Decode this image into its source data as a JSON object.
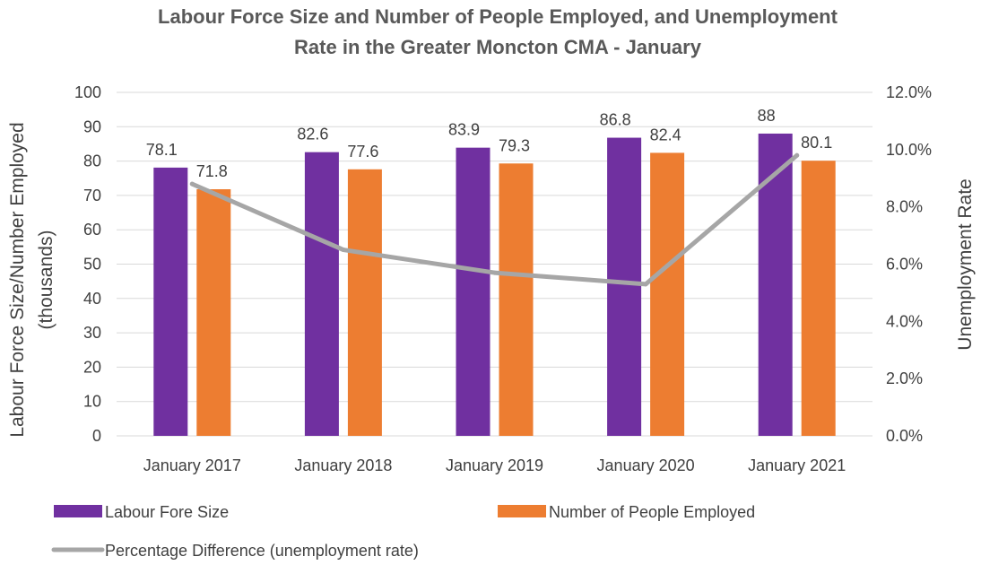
{
  "chart_data": {
    "type": "bar",
    "title_lines": [
      "Labour Force Size and Number of People Employed, and Unemployment",
      "Rate in the Greater Moncton CMA - January"
    ],
    "categories": [
      "January 2017",
      "January 2018",
      "January 2019",
      "January 2020",
      "January 2021"
    ],
    "series": [
      {
        "name": "Labour Fore Size",
        "kind": "bar",
        "axis": "left",
        "color": "#7030A0",
        "values": [
          78.1,
          82.6,
          83.9,
          86.8,
          88
        ]
      },
      {
        "name": "Number of People Employed",
        "kind": "bar",
        "axis": "left",
        "color": "#ED7D31",
        "values": [
          71.8,
          77.6,
          79.3,
          82.4,
          80.1
        ]
      },
      {
        "name": "Percentage Difference (unemployment rate)",
        "kind": "line",
        "axis": "right",
        "color": "#A6A6A6",
        "values": [
          8.8,
          6.5,
          5.7,
          5.3,
          9.8
        ]
      }
    ],
    "ylabel_lines": [
      "Labour Force Size/Number Employed",
      "(thousands)"
    ],
    "ylim": [
      0,
      100
    ],
    "yticks": [
      "0",
      "10",
      "20",
      "30",
      "40",
      "50",
      "60",
      "70",
      "80",
      "90",
      "100"
    ],
    "y2label": "Unemployment Rate",
    "y2lim": [
      0,
      12
    ],
    "y2ticks": [
      "0.0%",
      "2.0%",
      "4.0%",
      "6.0%",
      "8.0%",
      "10.0%",
      "12.0%"
    ],
    "grid": true,
    "legend_position": "bottom"
  }
}
